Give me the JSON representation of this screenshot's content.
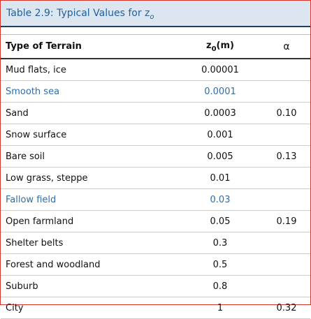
{
  "header": {
    "title": "Table 2.9: Typical Values for z",
    "title_subscript": "o"
  },
  "table": {
    "columns": [
      "Type of Terrain",
      {
        "text": "z",
        "subscript": "0",
        "unit": "(m)"
      },
      "α"
    ],
    "rows": [
      {
        "terrain": "Mud flats, ice",
        "z0": "0.00001"
      },
      {
        "terrain": "Smooth sea",
        "z0": "0.0001",
        "link": true
      },
      {
        "terrain": "Sand",
        "z0": "0.0003",
        "alpha": "0.10"
      },
      {
        "terrain": "Snow surface",
        "z0": "0.001"
      },
      {
        "terrain": "Bare soil",
        "z0": "0.005",
        "alpha": "0.13"
      },
      {
        "terrain": "Low grass, steppe",
        "z0": "0.01"
      },
      {
        "terrain": "Fallow field",
        "z0": "0.03",
        "link": true
      },
      {
        "terrain": "Open farmland",
        "z0": "0.05",
        "alpha": "0.19"
      },
      {
        "terrain": "Shelter belts",
        "z0": "0.3"
      },
      {
        "terrain": "Forest and woodland",
        "z0": "0.5"
      },
      {
        "terrain": "Suburb",
        "z0": "0.8"
      },
      {
        "terrain": "City",
        "z0": "1",
        "alpha": "0.32"
      }
    ]
  }
}
